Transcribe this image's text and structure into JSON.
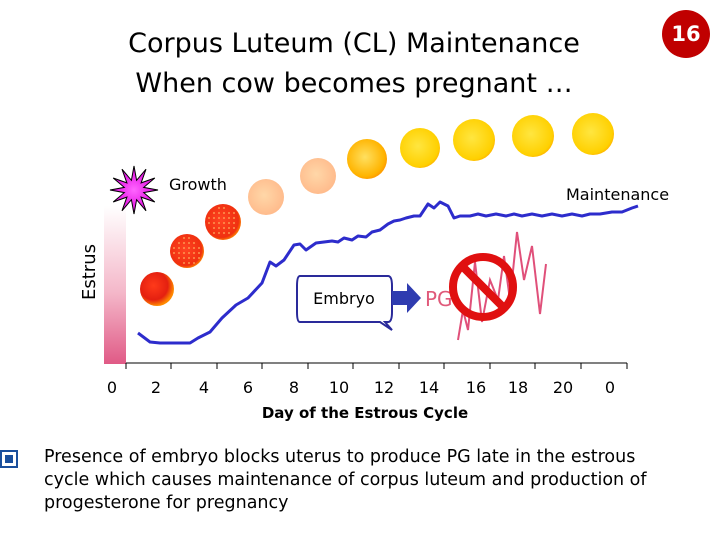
{
  "slide": {
    "title": "Corpus Luteum (CL) Maintenance",
    "subtitle": "When cow becomes pregnant …",
    "page_number": "16",
    "bullet": "Presence of embryo blocks uterus to produce PG late in the estrous cycle which causes maintenance of corpus luteum and production of progesterone for pregnancy"
  },
  "diagram": {
    "phase_label_estrus": "Estrus",
    "label_growth": "Growth",
    "label_maintenance": "Maintenance",
    "label_embryo": "Embryo",
    "label_pg": "PG",
    "x_axis_title": "Day of the Estrous Cycle",
    "x_ticks": [
      "0",
      "2",
      "4",
      "6",
      "8",
      "10",
      "12",
      "14",
      "16",
      "18",
      "20",
      "0"
    ],
    "colors": {
      "progesterone_line": "#2d2ccc",
      "pg_line": "#e0507a",
      "no_sign": "#e01010",
      "arrow": "#2f3cb0",
      "estrus_bar_top": "#ffffff",
      "estrus_bar_bottom": "#e05a86",
      "cl_red": "#e42010",
      "cl_yellow": "#ffd400",
      "follicle": "#ee22ee"
    },
    "icons": [
      "follicle-burst-icon",
      "corpus-luteum-icon",
      "no-sign-icon",
      "arrow-right-icon"
    ]
  }
}
